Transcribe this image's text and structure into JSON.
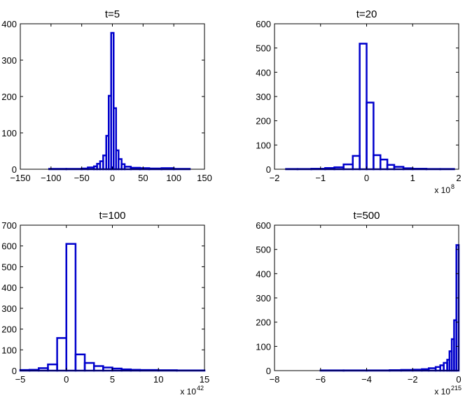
{
  "style": {
    "bar_color": "#0000cc",
    "axes_color": "#000000",
    "background": "#ffffff"
  },
  "chart_data": [
    {
      "type": "bar",
      "title": "t=5",
      "xlim": [
        -150,
        150
      ],
      "ylim": [
        0,
        400
      ],
      "xticks": [
        "−150",
        "−100",
        "−50",
        "0",
        "50",
        "100",
        "150"
      ],
      "xtick_values": [
        -150,
        -100,
        -50,
        0,
        50,
        100,
        150
      ],
      "yticks": [
        "0",
        "100",
        "200",
        "300",
        "400"
      ],
      "ytick_values": [
        0,
        100,
        200,
        300,
        400
      ],
      "x_scale_label": null,
      "bins": [
        {
          "x0": -103,
          "x1": -75,
          "value": 1
        },
        {
          "x0": -75,
          "x1": -50,
          "value": 1
        },
        {
          "x0": -50,
          "x1": -40,
          "value": 2
        },
        {
          "x0": -40,
          "x1": -30,
          "value": 5
        },
        {
          "x0": -30,
          "x1": -25,
          "value": 8
        },
        {
          "x0": -25,
          "x1": -20,
          "value": 15
        },
        {
          "x0": -20,
          "x1": -15,
          "value": 22
        },
        {
          "x0": -15,
          "x1": -10,
          "value": 38
        },
        {
          "x0": -10,
          "x1": -6,
          "value": 92
        },
        {
          "x0": -6,
          "x1": -2,
          "value": 202
        },
        {
          "x0": -2,
          "x1": 2,
          "value": 375
        },
        {
          "x0": 2,
          "x1": 6,
          "value": 168
        },
        {
          "x0": 6,
          "x1": 10,
          "value": 52
        },
        {
          "x0": 10,
          "x1": 15,
          "value": 28
        },
        {
          "x0": 15,
          "x1": 20,
          "value": 14
        },
        {
          "x0": 20,
          "x1": 30,
          "value": 7
        },
        {
          "x0": 30,
          "x1": 45,
          "value": 4
        },
        {
          "x0": 45,
          "x1": 60,
          "value": 3
        },
        {
          "x0": 60,
          "x1": 80,
          "value": 2
        },
        {
          "x0": 80,
          "x1": 100,
          "value": 3
        },
        {
          "x0": 100,
          "x1": 126,
          "value": 1
        }
      ]
    },
    {
      "type": "bar",
      "title": "t=20",
      "xlim": [
        -2,
        2
      ],
      "ylim": [
        0,
        600
      ],
      "xticks": [
        "−2",
        "−1",
        "0",
        "1",
        "2"
      ],
      "xtick_values": [
        -2,
        -1,
        0,
        1,
        2
      ],
      "yticks": [
        "0",
        "100",
        "200",
        "300",
        "400",
        "500",
        "600"
      ],
      "ytick_values": [
        0,
        100,
        200,
        300,
        400,
        500,
        600
      ],
      "x_scale_label": {
        "base": "x 10",
        "exponent": "8"
      },
      "bins": [
        {
          "x0": -1.75,
          "x1": -1.5,
          "value": 1
        },
        {
          "x0": -1.5,
          "x1": -1.2,
          "value": 1
        },
        {
          "x0": -1.2,
          "x1": -0.9,
          "value": 2
        },
        {
          "x0": -0.9,
          "x1": -0.7,
          "value": 5
        },
        {
          "x0": -0.7,
          "x1": -0.5,
          "value": 8
        },
        {
          "x0": -0.5,
          "x1": -0.3,
          "value": 20
        },
        {
          "x0": -0.3,
          "x1": -0.15,
          "value": 55
        },
        {
          "x0": -0.15,
          "x1": 0.0,
          "value": 518
        },
        {
          "x0": 0.0,
          "x1": 0.15,
          "value": 275
        },
        {
          "x0": 0.15,
          "x1": 0.3,
          "value": 58
        },
        {
          "x0": 0.3,
          "x1": 0.45,
          "value": 40
        },
        {
          "x0": 0.45,
          "x1": 0.6,
          "value": 18
        },
        {
          "x0": 0.6,
          "x1": 0.8,
          "value": 10
        },
        {
          "x0": 0.8,
          "x1": 1.0,
          "value": 4
        },
        {
          "x0": 1.0,
          "x1": 1.3,
          "value": 2
        },
        {
          "x0": 1.3,
          "x1": 1.6,
          "value": 1
        },
        {
          "x0": 1.6,
          "x1": 1.9,
          "value": 1
        }
      ]
    },
    {
      "type": "bar",
      "title": "t=100",
      "xlim": [
        -5,
        15
      ],
      "ylim": [
        0,
        700
      ],
      "xticks": [
        "−5",
        "0",
        "5",
        "10",
        "15"
      ],
      "xtick_values": [
        -5,
        0,
        5,
        10,
        15
      ],
      "yticks": [
        "0",
        "100",
        "200",
        "300",
        "400",
        "500",
        "600",
        "700"
      ],
      "ytick_values": [
        0,
        100,
        200,
        300,
        400,
        500,
        600,
        700
      ],
      "x_scale_label": {
        "base": "x 10",
        "exponent": "42"
      },
      "bins": [
        {
          "x0": -5,
          "x1": -4,
          "value": 3
        },
        {
          "x0": -4,
          "x1": -3,
          "value": 4
        },
        {
          "x0": -3,
          "x1": -2,
          "value": 12
        },
        {
          "x0": -2,
          "x1": -1,
          "value": 30
        },
        {
          "x0": -1,
          "x1": 0,
          "value": 157
        },
        {
          "x0": 0,
          "x1": 1,
          "value": 610
        },
        {
          "x0": 1,
          "x1": 2,
          "value": 78
        },
        {
          "x0": 2,
          "x1": 3,
          "value": 37
        },
        {
          "x0": 3,
          "x1": 4,
          "value": 22
        },
        {
          "x0": 4,
          "x1": 5,
          "value": 15
        },
        {
          "x0": 5,
          "x1": 6,
          "value": 10
        },
        {
          "x0": 6,
          "x1": 7,
          "value": 6
        },
        {
          "x0": 7,
          "x1": 8,
          "value": 4
        },
        {
          "x0": 8,
          "x1": 10,
          "value": 3
        },
        {
          "x0": 10,
          "x1": 12,
          "value": 2
        },
        {
          "x0": 12,
          "x1": 15,
          "value": 1
        }
      ]
    },
    {
      "type": "bar",
      "title": "t=500",
      "xlim": [
        -8,
        0
      ],
      "ylim": [
        0,
        600
      ],
      "xticks": [
        "−8",
        "−6",
        "−4",
        "−2",
        "0"
      ],
      "xtick_values": [
        -8,
        -6,
        -4,
        -2,
        0
      ],
      "yticks": [
        "0",
        "100",
        "200",
        "300",
        "400",
        "500",
        "600"
      ],
      "ytick_values": [
        0,
        100,
        200,
        300,
        400,
        500,
        600
      ],
      "x_scale_label": {
        "base": "x 10",
        "exponent": "215"
      },
      "bins": [
        {
          "x0": -8,
          "x1": -7,
          "value": 0
        },
        {
          "x0": -7,
          "x1": -6,
          "value": 0
        },
        {
          "x0": -6,
          "x1": -5,
          "value": 1
        },
        {
          "x0": -5,
          "x1": -4,
          "value": 1
        },
        {
          "x0": -4,
          "x1": -3,
          "value": 1
        },
        {
          "x0": -3,
          "x1": -2.5,
          "value": 2
        },
        {
          "x0": -2.5,
          "x1": -2,
          "value": 3
        },
        {
          "x0": -2,
          "x1": -1.6,
          "value": 4
        },
        {
          "x0": -1.6,
          "x1": -1.3,
          "value": 6
        },
        {
          "x0": -1.3,
          "x1": -1.0,
          "value": 10
        },
        {
          "x0": -1.0,
          "x1": -0.8,
          "value": 15
        },
        {
          "x0": -0.8,
          "x1": -0.65,
          "value": 22
        },
        {
          "x0": -0.65,
          "x1": -0.5,
          "value": 32
        },
        {
          "x0": -0.5,
          "x1": -0.4,
          "value": 45
        },
        {
          "x0": -0.4,
          "x1": -0.3,
          "value": 80
        },
        {
          "x0": -0.3,
          "x1": -0.2,
          "value": 130
        },
        {
          "x0": -0.2,
          "x1": -0.1,
          "value": 208
        },
        {
          "x0": -0.1,
          "x1": 0.0,
          "value": 518
        }
      ]
    }
  ]
}
